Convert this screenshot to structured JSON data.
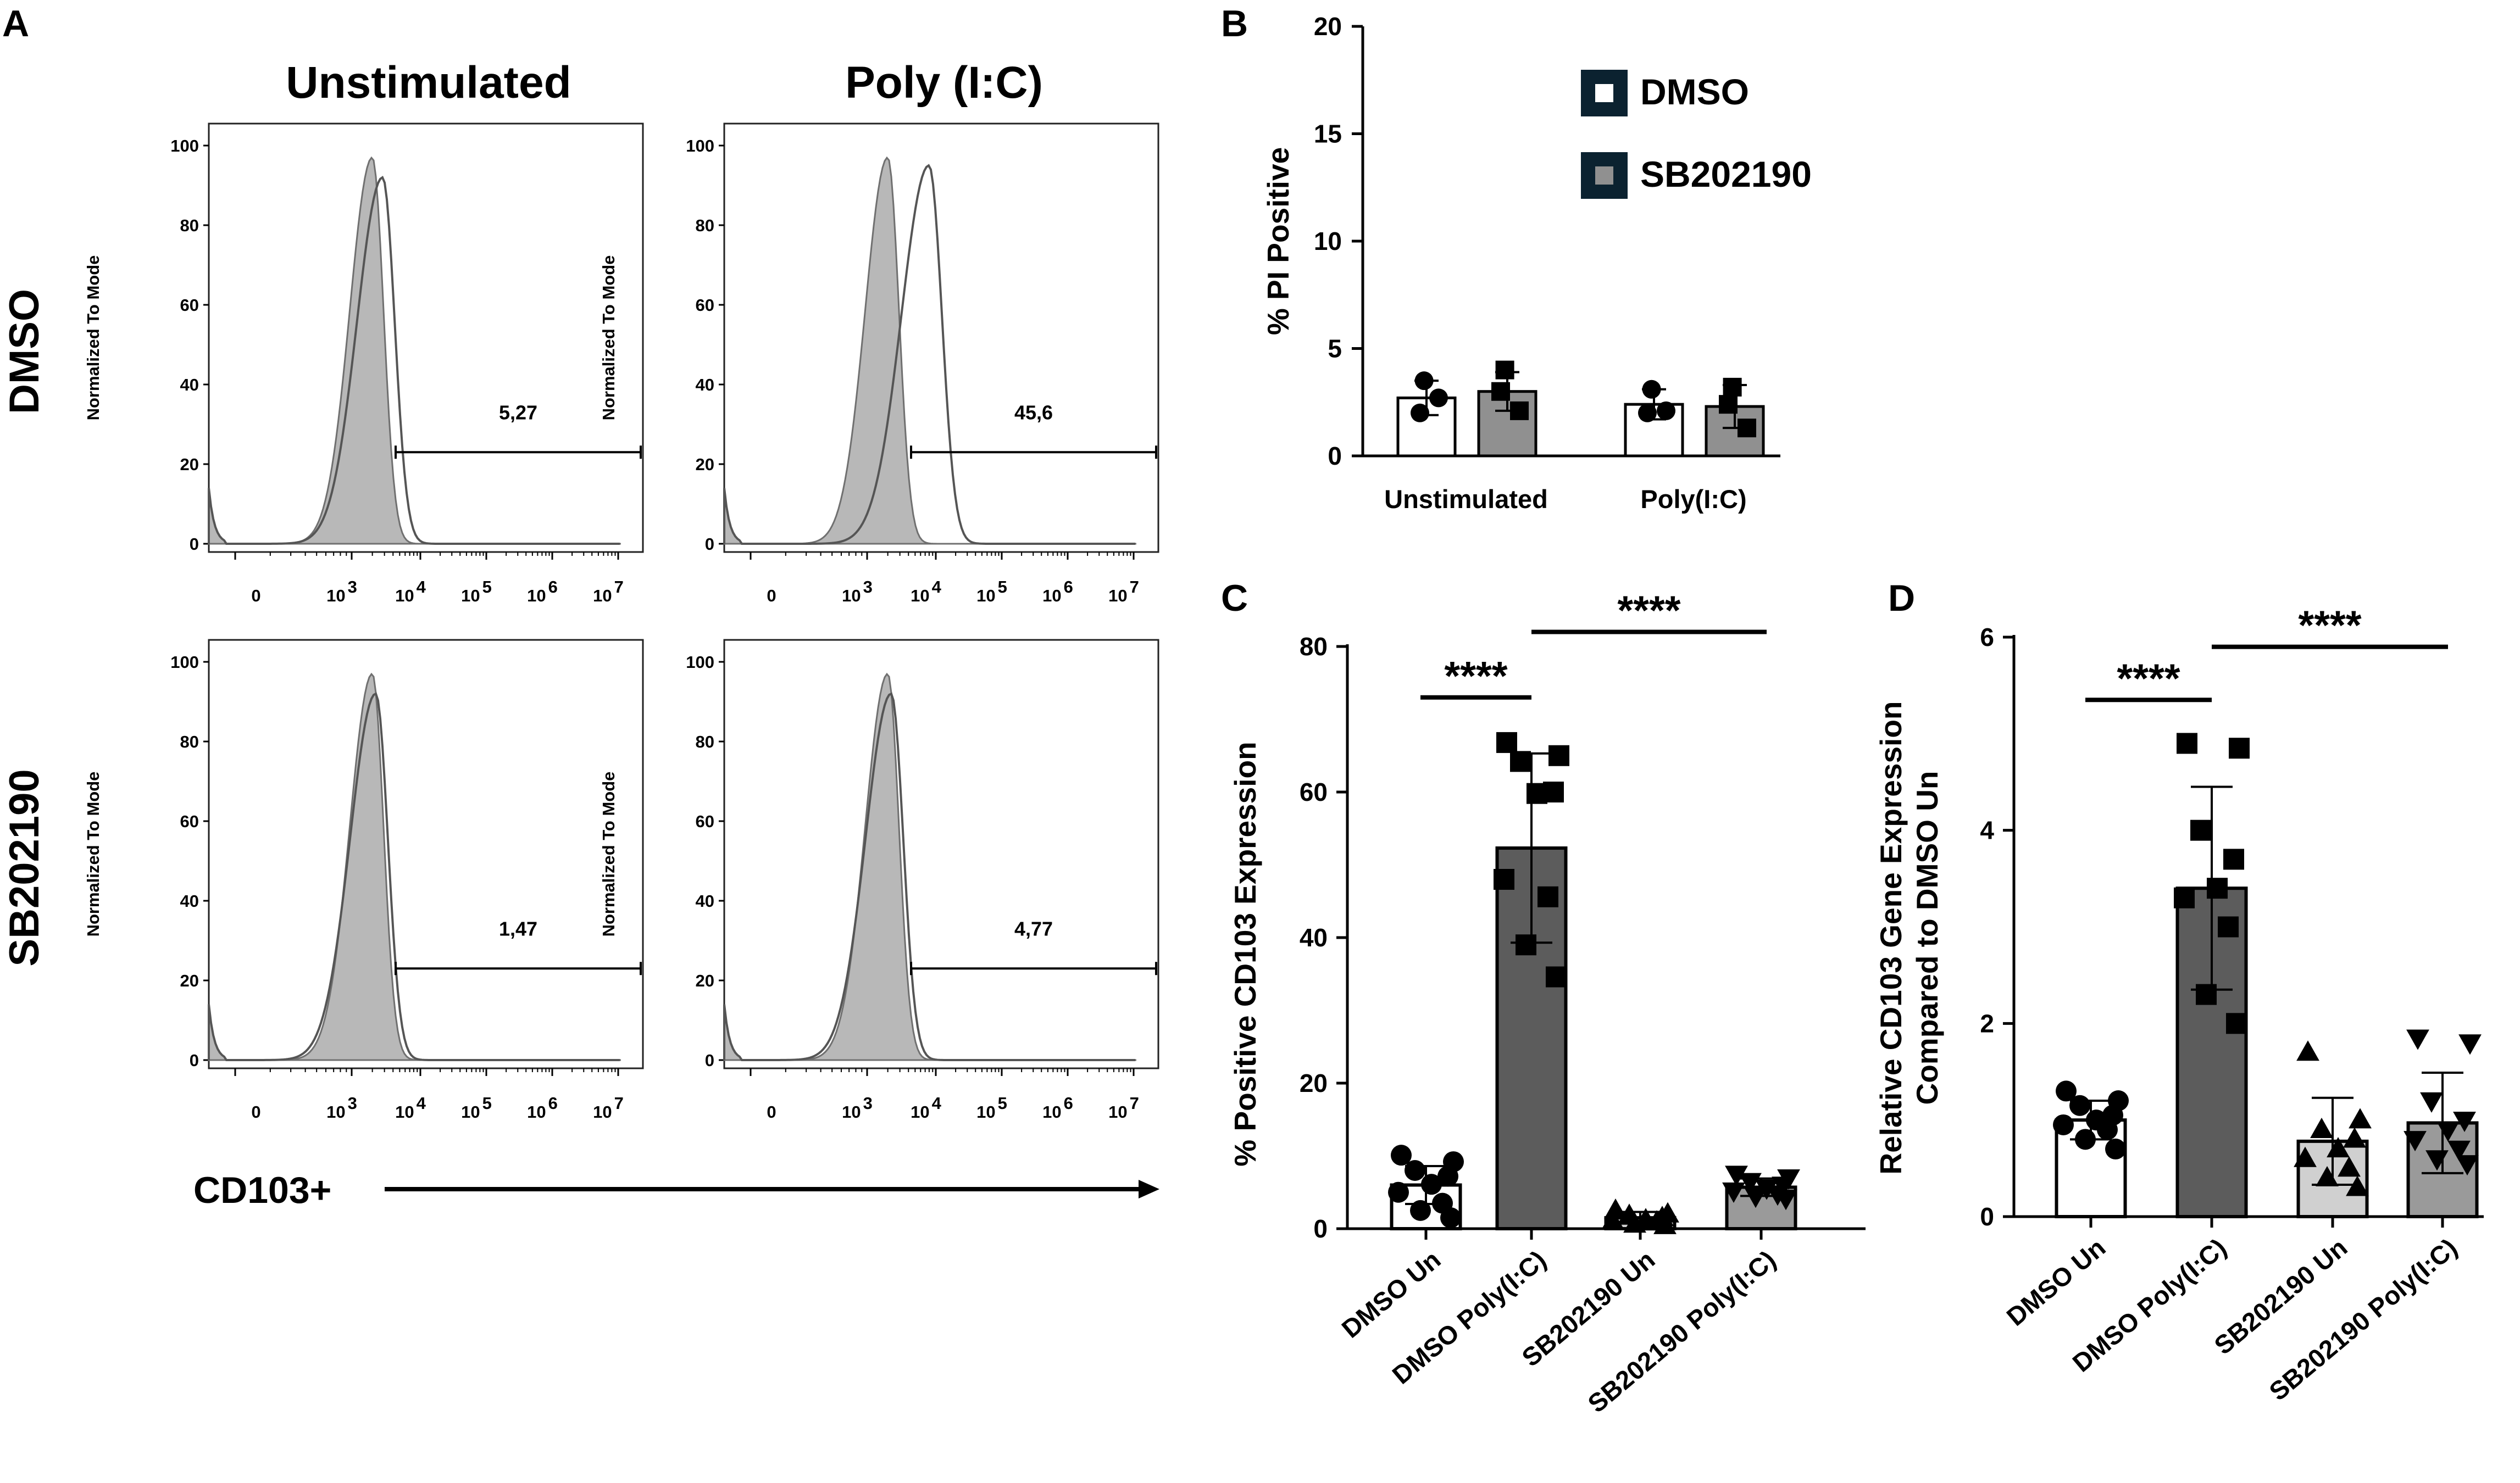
{
  "panel_A": {
    "letter": "A",
    "column_titles": [
      "Unstimulated",
      "Poly (I:C)"
    ],
    "row_titles": [
      "DMSO",
      "SB202190"
    ],
    "y_axis_label": "Normalized To Mode",
    "x_axis_label": "CD103+",
    "colors": {
      "control_fill": "#b8b8b8",
      "control_line": "#707070",
      "sample_line": "#555555"
    },
    "chart_data": {
      "type": "histogram",
      "y_ticks": [
        "0",
        "20",
        "40",
        "60",
        "80",
        "100"
      ],
      "x_tick_labels": [
        "0",
        "10 3",
        "10 4",
        "10 5",
        "10 6",
        "10 7"
      ],
      "ylim": [
        0,
        100
      ],
      "histograms": [
        {
          "row": "DMSO",
          "column": "Unstimulated",
          "gate_percent": "5,27",
          "control_peak_decade": 3.3,
          "sample_peak_decade": 3.45
        },
        {
          "row": "DMSO",
          "column": "Poly (I:C)",
          "gate_percent": "45,6",
          "control_peak_decade": 3.3,
          "sample_peak_decade": 3.9
        },
        {
          "row": "SB202190",
          "column": "Unstimulated",
          "gate_percent": "1,47",
          "control_peak_decade": 3.3,
          "sample_peak_decade": 3.35
        },
        {
          "row": "SB202190",
          "column": "Poly (I:C)",
          "gate_percent": "4,77",
          "control_peak_decade": 3.3,
          "sample_peak_decade": 3.35
        }
      ]
    }
  },
  "panel_B": {
    "letter": "B",
    "legend": [
      {
        "label": "DMSO",
        "fill": "#ffffff"
      },
      {
        "label": "SB202190",
        "fill": "#909090"
      }
    ],
    "legend_box_color": "#0b2230",
    "chart_data": {
      "type": "bar",
      "ylabel": "% PI Positive",
      "ylim": [
        0,
        20
      ],
      "y_ticks": [
        "0",
        "5",
        "10",
        "15",
        "20"
      ],
      "categories": [
        "Unstimulated",
        "Poly(I:C)"
      ],
      "series": [
        {
          "name": "DMSO",
          "values": [
            2.7,
            2.4
          ],
          "sd": [
            0.8,
            0.7
          ],
          "points": [
            [
              3.5,
              2.0,
              2.7
            ],
            [
              3.1,
              2.0,
              2.1
            ]
          ]
        },
        {
          "name": "SB202190",
          "values": [
            3.0,
            2.3
          ],
          "sd": [
            0.9,
            1.0
          ],
          "points": [
            [
              4.0,
              3.0,
              2.1
            ],
            [
              3.2,
              2.4,
              1.3
            ]
          ]
        }
      ]
    }
  },
  "panel_C": {
    "letter": "C",
    "chart_data": {
      "type": "bar",
      "ylabel": "% Positive CD103 Expression",
      "ylim": [
        0,
        80
      ],
      "y_ticks": [
        "0",
        "20",
        "40",
        "60",
        "80"
      ],
      "categories": [
        "DMSO Un",
        "DMSO Poly(I:C)",
        "SB202190 Un",
        "SB202190 Poly(I:C)"
      ],
      "values": [
        6.0,
        52.3,
        1.5,
        5.7
      ],
      "sd": [
        2.6,
        13.0,
        0.8,
        1.2
      ],
      "bar_fills": [
        "#ffffff",
        "#5c5c5c",
        "#d0d0d0",
        "#9a9a9a"
      ],
      "points": [
        [
          10.1,
          9.2,
          8.0,
          7.2,
          6.1,
          5.0,
          3.5,
          2.5,
          1.5
        ],
        [
          66.8,
          65.0,
          64.2,
          60.0,
          59.8,
          48.0,
          45.6,
          39.0,
          34.6
        ],
        [
          2.5,
          2.0,
          1.8,
          1.5,
          1.2,
          1.0,
          0.9,
          0.6,
          0.4
        ],
        [
          7.5,
          7.0,
          6.5,
          6.0,
          5.6,
          5.2,
          4.8,
          4.5,
          4.2
        ]
      ],
      "point_markers": [
        "circle",
        "square",
        "triangle",
        "triangle-down"
      ],
      "significance": [
        {
          "from": 0,
          "to": 1,
          "label": "****",
          "y": 73
        },
        {
          "from": 1,
          "to": 3,
          "label": "****",
          "y": 82
        }
      ]
    }
  },
  "panel_D": {
    "letter": "D",
    "chart_data": {
      "type": "bar",
      "ylabel_lines": [
        "Relative CD103 Gene Expression",
        "Compared to DMSO Un"
      ],
      "ylim": [
        0,
        6
      ],
      "y_ticks": [
        "0",
        "2",
        "4",
        "6"
      ],
      "categories": [
        "DMSO Un",
        "DMSO Poly(I:C)",
        "SB202190 Un",
        "SB202190 Poly(I:C)"
      ],
      "values": [
        1.0,
        3.4,
        0.78,
        0.97
      ],
      "sd": [
        0.2,
        1.05,
        0.45,
        0.52
      ],
      "bar_fills": [
        "#ffffff",
        "#5c5c5c",
        "#d0d0d0",
        "#9a9a9a"
      ],
      "points": [
        [
          1.3,
          1.2,
          1.15,
          1.05,
          1.0,
          0.95,
          0.9,
          0.8,
          0.7
        ],
        [
          4.9,
          4.85,
          4.0,
          3.7,
          3.4,
          3.3,
          3.0,
          2.3,
          2.0
        ],
        [
          1.7,
          1.0,
          0.9,
          0.8,
          0.7,
          0.6,
          0.5,
          0.4,
          0.3
        ],
        [
          1.85,
          1.8,
          1.2,
          1.0,
          0.9,
          0.8,
          0.7,
          0.6,
          0.55
        ]
      ],
      "point_markers": [
        "circle",
        "square",
        "triangle",
        "triangle-down"
      ],
      "significance": [
        {
          "from": 0,
          "to": 1,
          "label": "****",
          "y": 5.35
        },
        {
          "from": 1,
          "to": 3,
          "label": "****",
          "y": 5.9
        }
      ]
    }
  }
}
